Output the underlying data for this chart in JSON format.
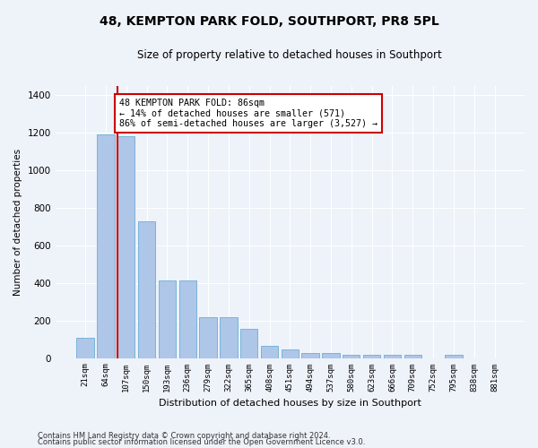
{
  "title": "48, KEMPTON PARK FOLD, SOUTHPORT, PR8 5PL",
  "subtitle": "Size of property relative to detached houses in Southport",
  "xlabel": "Distribution of detached houses by size in Southport",
  "ylabel": "Number of detached properties",
  "categories": [
    "21sqm",
    "64sqm",
    "107sqm",
    "150sqm",
    "193sqm",
    "236sqm",
    "279sqm",
    "322sqm",
    "365sqm",
    "408sqm",
    "451sqm",
    "494sqm",
    "537sqm",
    "580sqm",
    "623sqm",
    "666sqm",
    "709sqm",
    "752sqm",
    "795sqm",
    "838sqm",
    "881sqm"
  ],
  "values": [
    107,
    1190,
    1180,
    730,
    415,
    415,
    215,
    215,
    155,
    65,
    47,
    28,
    28,
    17,
    17,
    17,
    17,
    0,
    17,
    0,
    0
  ],
  "bar_color": "#aec6e8",
  "bar_edge_color": "#6baed6",
  "annotation_text_line1": "48 KEMPTON PARK FOLD: 86sqm",
  "annotation_text_line2": "← 14% of detached houses are smaller (571)",
  "annotation_text_line3": "86% of semi-detached houses are larger (3,527) →",
  "annotation_box_color": "#ffffff",
  "annotation_box_edge_color": "#cc0000",
  "vline_color": "#cc0000",
  "footer_line1": "Contains HM Land Registry data © Crown copyright and database right 2024.",
  "footer_line2": "Contains public sector information licensed under the Open Government Licence v3.0.",
  "background_color": "#eef2f9",
  "plot_background_color": "#eef2f9",
  "ylim": [
    0,
    1450
  ],
  "yticks": [
    0,
    200,
    400,
    600,
    800,
    1000,
    1200,
    1400
  ]
}
